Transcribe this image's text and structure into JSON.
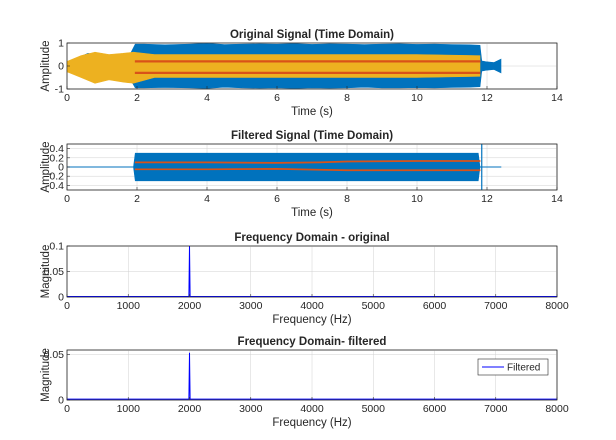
{
  "chart_data": [
    {
      "id": "original-time",
      "type": "line",
      "title": "Original Signal (Time Domain)",
      "xlabel": "Time (s)",
      "ylabel": "Amplitude",
      "xlim": [
        0,
        14
      ],
      "ylim": [
        -1,
        1
      ],
      "xticks": [
        0,
        2,
        4,
        6,
        8,
        10,
        12,
        14
      ],
      "yticks": [
        -1,
        0,
        1
      ],
      "grid": true,
      "series": [
        {
          "color": "#0072BD",
          "kind": "envelope",
          "x": [
            0,
            0.3,
            0.6,
            0.9,
            1.2,
            1.5,
            1.8,
            1.95,
            2.2,
            2.8,
            3.5,
            4.0,
            4.5,
            5.0,
            5.5,
            6.0,
            6.5,
            7.0,
            7.5,
            8.0,
            8.5,
            9.0,
            9.5,
            10.0,
            10.5,
            11.0,
            11.5,
            11.8,
            11.85,
            12.0,
            12.2,
            12.4
          ],
          "upper": [
            0.15,
            0.35,
            0.55,
            0.45,
            0.3,
            0.45,
            0.5,
            0.95,
            0.95,
            0.92,
            0.95,
            0.98,
            0.93,
            0.95,
            0.96,
            0.95,
            0.97,
            0.94,
            0.96,
            0.95,
            0.93,
            0.95,
            0.96,
            0.94,
            0.95,
            0.93,
            0.92,
            0.9,
            0.22,
            0.18,
            0.15,
            0.3
          ],
          "lower": [
            -0.15,
            -0.4,
            -0.55,
            -0.45,
            -0.35,
            -0.5,
            -0.55,
            -0.95,
            -0.95,
            -0.93,
            -0.95,
            -0.97,
            -0.92,
            -0.95,
            -0.96,
            -0.95,
            -0.97,
            -0.95,
            -0.96,
            -0.95,
            -0.92,
            -0.95,
            -0.95,
            -0.94,
            -0.95,
            -0.93,
            -0.92,
            -0.9,
            -0.22,
            -0.18,
            -0.15,
            -0.3
          ]
        },
        {
          "color": "#EDB120",
          "kind": "envelope",
          "x": [
            0,
            0.4,
            0.8,
            1.2,
            1.6,
            1.9,
            2.5,
            4,
            6,
            8,
            10,
            11.8
          ],
          "upper": [
            0.2,
            0.45,
            0.6,
            0.5,
            0.55,
            0.6,
            0.5,
            0.5,
            0.5,
            0.5,
            0.5,
            0.45
          ],
          "lower": [
            -0.25,
            -0.5,
            -0.75,
            -0.6,
            -0.7,
            -0.75,
            -0.5,
            -0.5,
            -0.5,
            -0.5,
            -0.5,
            -0.45
          ]
        },
        {
          "color": "#D95319",
          "kind": "band",
          "x": [
            1.95,
            4,
            6,
            8,
            10,
            11.8
          ],
          "center": [
            0.2,
            0.2,
            0.2,
            0.2,
            0.2,
            0.2
          ],
          "width": 0.06
        },
        {
          "color": "#D95319",
          "kind": "band",
          "x": [
            1.95,
            4,
            6,
            8,
            10,
            11.8
          ],
          "center": [
            -0.3,
            -0.3,
            -0.3,
            -0.3,
            -0.3,
            -0.3
          ],
          "width": 0.06
        }
      ]
    },
    {
      "id": "filtered-time",
      "type": "line",
      "title": "Filtered Signal (Time Domain)",
      "xlabel": "Time (s)",
      "ylabel": "Amplitude",
      "xlim": [
        0,
        14
      ],
      "ylim": [
        -0.5,
        0.5
      ],
      "xticks": [
        0,
        2,
        4,
        6,
        8,
        10,
        12,
        14
      ],
      "yticks": [
        -0.4,
        -0.2,
        0,
        0.2,
        0.4
      ],
      "grid": true,
      "series": [
        {
          "color": "#0072BD",
          "kind": "envelope",
          "x": [
            0,
            1.9,
            1.95,
            2.2,
            4,
            6,
            8,
            10,
            11.75,
            11.8,
            12.4
          ],
          "upper": [
            0.005,
            0.005,
            0.3,
            0.3,
            0.3,
            0.3,
            0.3,
            0.3,
            0.3,
            0.005,
            0.005
          ],
          "lower": [
            -0.005,
            -0.005,
            -0.3,
            -0.3,
            -0.3,
            -0.3,
            -0.3,
            -0.3,
            -0.3,
            -0.005,
            -0.005
          ]
        },
        {
          "color": "#D95319",
          "kind": "band",
          "x": [
            1.95,
            4,
            6,
            7.2,
            8,
            10,
            11.8
          ],
          "center": [
            0.1,
            0.1,
            0.09,
            0.1,
            0.12,
            0.13,
            0.13
          ],
          "width": 0.02
        },
        {
          "color": "#D95319",
          "kind": "band",
          "x": [
            1.95,
            4,
            6,
            7.2,
            8,
            10,
            11.8
          ],
          "center": [
            -0.05,
            -0.05,
            -0.04,
            -0.06,
            -0.07,
            -0.07,
            -0.07
          ],
          "width": 0.02
        },
        {
          "color": "#0072BD",
          "kind": "vline",
          "x": 11.85,
          "y": [
            -0.5,
            0.5
          ]
        }
      ]
    },
    {
      "id": "freq-original",
      "type": "line",
      "title": "Frequency Domain - original",
      "xlabel": "Frequency (Hz)",
      "ylabel": "Magnitude",
      "xlim": [
        0,
        8000
      ],
      "ylim": [
        0,
        0.1
      ],
      "xticks": [
        0,
        1000,
        2000,
        3000,
        4000,
        5000,
        6000,
        7000,
        8000
      ],
      "yticks": [
        0,
        0.05,
        0.1
      ],
      "grid": true,
      "series": [
        {
          "color": "#0000FF",
          "kind": "line",
          "x": [
            0,
            1990,
            2000,
            2010,
            8000
          ],
          "y": [
            0.001,
            0.001,
            0.1,
            0.001,
            0.001
          ]
        }
      ]
    },
    {
      "id": "freq-filtered",
      "type": "line",
      "title": "Frequency Domain- filtered",
      "xlabel": "Frequency (Hz)",
      "ylabel": "Magnitude",
      "xlim": [
        0,
        8000
      ],
      "ylim": [
        0,
        0.055
      ],
      "xticks": [
        0,
        1000,
        2000,
        3000,
        4000,
        5000,
        6000,
        7000,
        8000
      ],
      "yticks": [
        0,
        0.05
      ],
      "grid": true,
      "legend": {
        "entries": [
          "Filtered"
        ],
        "placement": "top-right"
      },
      "series": [
        {
          "name": "Filtered",
          "color": "#0000FF",
          "kind": "line",
          "x": [
            0,
            1990,
            2000,
            2010,
            8000
          ],
          "y": [
            0.001,
            0.001,
            0.052,
            0.001,
            0.001
          ]
        }
      ]
    }
  ]
}
